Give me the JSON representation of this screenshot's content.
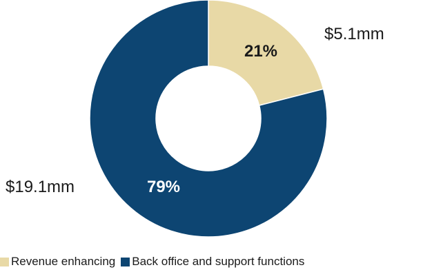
{
  "chart_data": {
    "type": "pie",
    "donut": true,
    "title": "",
    "categories": [
      "Revenue enhancing",
      "Back office and support functions"
    ],
    "values": [
      21,
      79
    ],
    "value_labels": [
      "21%",
      "79%"
    ],
    "amount_labels": [
      "$5.1mm",
      "$19.1mm"
    ],
    "colors": [
      "#e8d9a6",
      "#0d4572"
    ],
    "legend": {
      "position": "bottom-left",
      "entries": [
        "Revenue enhancing",
        "Back office and support functions"
      ]
    }
  }
}
